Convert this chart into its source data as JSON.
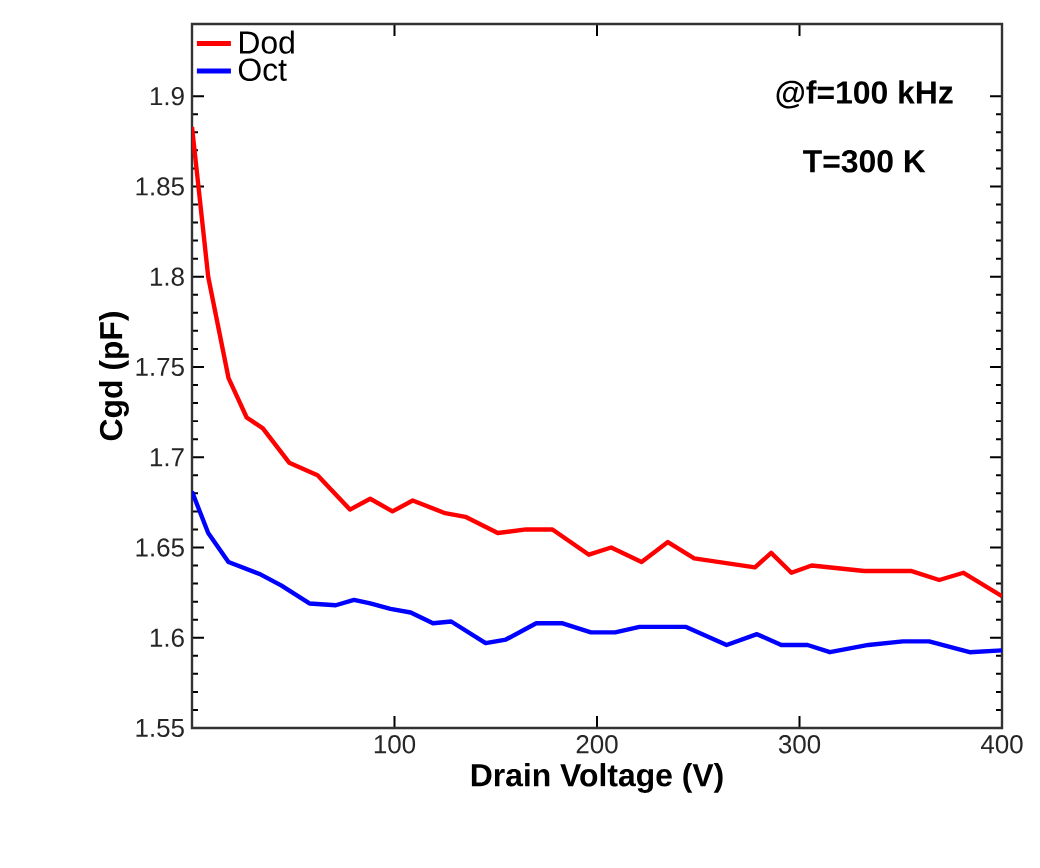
{
  "chart_data": {
    "type": "line",
    "xlabel": "Drain Voltage (V)",
    "ylabel": "Cgd (pF)",
    "xlim": [
      0,
      400
    ],
    "xticks": [
      100,
      200,
      300,
      400
    ],
    "ylim": [
      1.55,
      1.94
    ],
    "yticks": [
      1.55,
      1.6,
      1.65,
      1.7,
      1.75,
      1.8,
      1.85,
      1.9
    ],
    "legend": "top left",
    "annotations": [
      "@f=100 kHz",
      "T=300 K"
    ],
    "series": [
      {
        "name": "Dod",
        "color": "#ff0000",
        "x": [
          0,
          8,
          18,
          27,
          35,
          48,
          62,
          78,
          88,
          99,
          109,
          125,
          135,
          151,
          165,
          178,
          196,
          207,
          222,
          235,
          248,
          278,
          286,
          296,
          306,
          332,
          355,
          369,
          381,
          400
        ],
        "values": [
          1.883,
          1.8,
          1.744,
          1.722,
          1.716,
          1.697,
          1.69,
          1.671,
          1.677,
          1.67,
          1.676,
          1.669,
          1.667,
          1.658,
          1.66,
          1.66,
          1.646,
          1.65,
          1.642,
          1.653,
          1.644,
          1.639,
          1.647,
          1.636,
          1.64,
          1.637,
          1.637,
          1.632,
          1.636,
          1.623
        ]
      },
      {
        "name": "Oct",
        "color": "#0000ff",
        "x": [
          0,
          8,
          18,
          34,
          44,
          58,
          71,
          80,
          88,
          98,
          108,
          119,
          128,
          145,
          155,
          170,
          183,
          197,
          209,
          221,
          244,
          264,
          279,
          291,
          304,
          315,
          334,
          351,
          364,
          384,
          400
        ],
        "values": [
          1.681,
          1.658,
          1.642,
          1.635,
          1.629,
          1.619,
          1.618,
          1.621,
          1.619,
          1.616,
          1.614,
          1.608,
          1.609,
          1.597,
          1.599,
          1.608,
          1.608,
          1.603,
          1.603,
          1.606,
          1.606,
          1.596,
          1.602,
          1.596,
          1.596,
          1.592,
          1.596,
          1.598,
          1.598,
          1.592,
          1.593
        ]
      }
    ]
  }
}
